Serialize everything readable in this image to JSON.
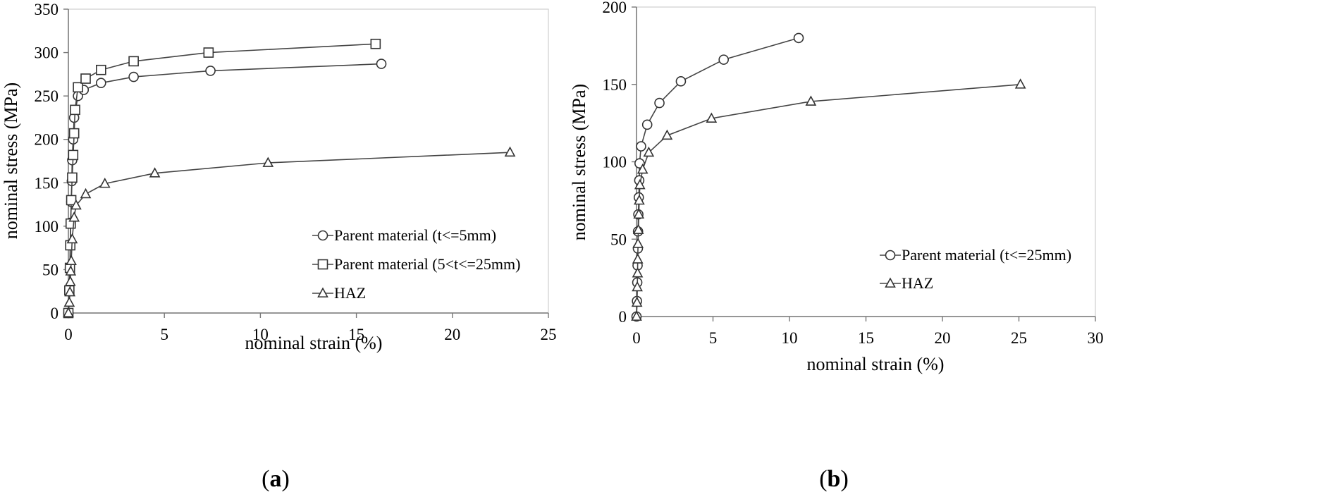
{
  "chart_data": [
    {
      "type": "line",
      "panel_label": "a",
      "xlabel": "nominal strain (%)",
      "ylabel": "nominal stress (MPa)",
      "xlim": [
        0,
        25
      ],
      "ylim": [
        0,
        350
      ],
      "xticks": [
        0,
        5,
        10,
        15,
        20,
        25
      ],
      "yticks": [
        0,
        50,
        100,
        150,
        200,
        250,
        300,
        350
      ],
      "legend_position": "bottom-right",
      "series": [
        {
          "name": "Parent material (t<=5mm)",
          "marker": "circle",
          "x": [
            0,
            0.05,
            0.08,
            0.1,
            0.12,
            0.15,
            0.18,
            0.2,
            0.25,
            0.3,
            0.5,
            0.8,
            1.7,
            3.4,
            7.4,
            16.3
          ],
          "y": [
            0,
            26,
            52,
            78,
            104,
            128,
            152,
            176,
            200,
            225,
            250,
            257,
            265,
            272,
            279,
            287
          ]
        },
        {
          "name": "Parent material (5<t<=25mm)",
          "marker": "square",
          "x": [
            0,
            0.05,
            0.08,
            0.1,
            0.12,
            0.15,
            0.2,
            0.25,
            0.3,
            0.35,
            0.5,
            0.9,
            1.7,
            3.4,
            7.3,
            16.0
          ],
          "y": [
            0,
            26,
            52,
            78,
            103,
            130,
            156,
            182,
            207,
            234,
            260,
            270,
            280,
            290,
            300,
            310
          ]
        },
        {
          "name": "HAZ",
          "marker": "triangle",
          "x": [
            0,
            0.05,
            0.08,
            0.1,
            0.12,
            0.15,
            0.2,
            0.3,
            0.4,
            0.9,
            1.9,
            4.5,
            10.4,
            23.0
          ],
          "y": [
            0,
            12,
            24,
            36,
            48,
            60,
            85,
            110,
            124,
            137,
            149,
            161,
            173,
            185
          ]
        }
      ]
    },
    {
      "type": "line",
      "panel_label": "b",
      "xlabel": "nominal strain (%)",
      "ylabel": "nominal stress (MPa)",
      "xlim": [
        0,
        30
      ],
      "ylim": [
        0,
        200
      ],
      "xticks": [
        0,
        5,
        10,
        15,
        20,
        25,
        30
      ],
      "yticks": [
        0,
        50,
        100,
        150,
        200
      ],
      "legend_position": "bottom-right",
      "series": [
        {
          "name": "Parent material (t<=25mm)",
          "marker": "circle",
          "x": [
            0,
            0.03,
            0.05,
            0.07,
            0.09,
            0.1,
            0.12,
            0.15,
            0.18,
            0.2,
            0.3,
            0.7,
            1.5,
            2.9,
            5.7,
            10.6
          ],
          "y": [
            0,
            10,
            22,
            33,
            44,
            55,
            66,
            77,
            88,
            99,
            110,
            124,
            138,
            152,
            166,
            180
          ]
        },
        {
          "name": "HAZ",
          "marker": "triangle",
          "x": [
            0,
            0.03,
            0.05,
            0.07,
            0.08,
            0.1,
            0.12,
            0.15,
            0.18,
            0.22,
            0.4,
            0.8,
            2.0,
            4.9,
            11.4,
            25.1
          ],
          "y": [
            0,
            9,
            19,
            28,
            37,
            47,
            56,
            66,
            75,
            85,
            95,
            106,
            117,
            128,
            139,
            150
          ]
        }
      ]
    }
  ]
}
